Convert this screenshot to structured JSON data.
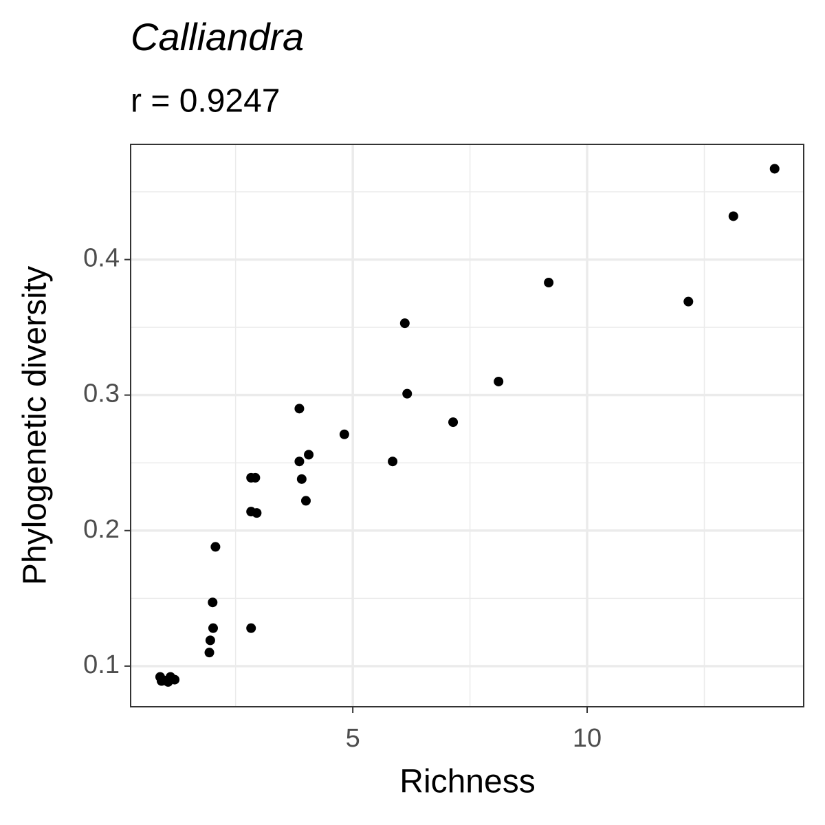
{
  "chart_data": {
    "type": "scatter",
    "title": "Calliandra",
    "subtitle": "r = 0.9247",
    "x_label": "Richness",
    "y_label": "Phylogenetic diversity",
    "color": "#000000",
    "grid": true,
    "xlim": [
      0.26,
      14.62
    ],
    "ylim": [
      0.07,
      0.485
    ],
    "xticks": [
      5,
      10
    ],
    "yticks": [
      0.1,
      0.2,
      0.3,
      0.4
    ],
    "x_minor_grid": [
      2.5,
      7.5,
      12.5
    ],
    "y_minor_grid": [
      0.15,
      0.25,
      0.35,
      0.45
    ],
    "x": [
      14.0,
      13.12,
      9.18,
      12.16,
      6.11,
      8.11,
      6.16,
      7.14,
      3.86,
      4.82,
      3.86,
      4.06,
      5.85,
      3.91,
      4.0,
      2.83,
      2.92,
      2.83,
      2.95,
      2.07,
      2.01,
      2.02,
      2.83,
      1.96,
      1.94,
      0.89,
      1.0,
      1.11,
      1.2,
      1.06,
      0.92
    ],
    "values": [
      0.467,
      0.432,
      0.383,
      0.369,
      0.353,
      0.31,
      0.301,
      0.28,
      0.29,
      0.271,
      0.251,
      0.256,
      0.251,
      0.238,
      0.222,
      0.239,
      0.239,
      0.214,
      0.213,
      0.188,
      0.147,
      0.128,
      0.128,
      0.119,
      0.11,
      0.092,
      0.0893,
      0.092,
      0.09,
      0.0883,
      0.089
    ]
  }
}
